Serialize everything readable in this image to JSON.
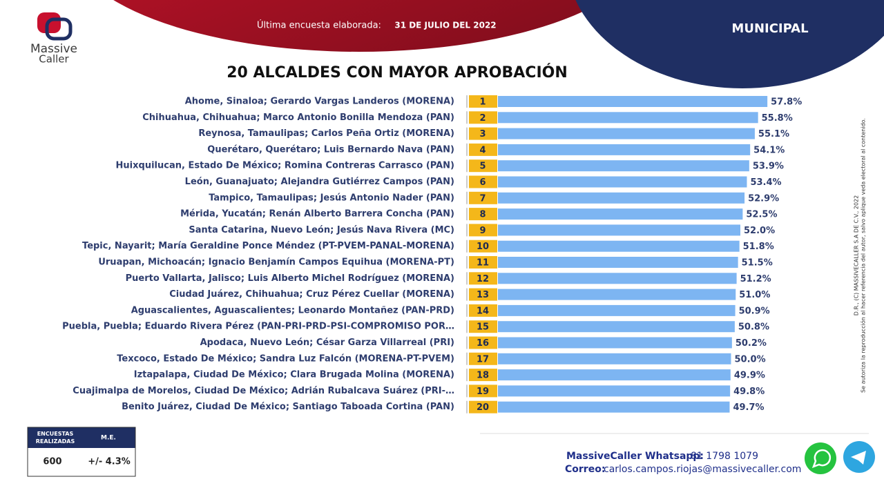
{
  "logo": {
    "line1": "Massive",
    "line2": "Caller"
  },
  "header": {
    "label": "Última encuesta elaborada:",
    "date": "31 DE JULIO DEL 2022",
    "section": "MUNICIPAL"
  },
  "chart_data": {
    "type": "bar",
    "orientation": "horizontal",
    "title": "20 ALCALDES CON MAYOR APROBACIÓN",
    "categories": [
      "Ahome, Sinaloa; Gerardo Vargas Landeros (MORENA)",
      "Chihuahua, Chihuahua; Marco Antonio Bonilla Mendoza (PAN)",
      "Reynosa, Tamaulipas; Carlos Peña Ortiz (MORENA)",
      "Querétaro, Querétaro; Luis Bernardo Nava (PAN)",
      "Huixquilucan, Estado De México; Romina Contreras Carrasco  (PAN)",
      "León, Guanajuato; Alejandra Gutiérrez Campos (PAN)",
      "Tampico, Tamaulipas; Jesús Antonio Nader  (PAN)",
      "Mérida, Yucatán; Renán Alberto Barrera Concha (PAN)",
      "Santa Catarina, Nuevo León; Jesús Nava Rivera (MC)",
      "Tepic, Nayarit; María Geraldine Ponce Méndez (PT-PVEM-PANAL-MORENA)",
      "Uruapan, Michoacán; Ignacio Benjamín Campos Equihua (MORENA-PT)",
      "Puerto Vallarta, Jalisco; Luis Alberto Michel Rodríguez (MORENA)",
      "Ciudad Juárez, Chihuahua; Cruz Pérez Cuellar (MORENA)",
      "Aguascalientes, Aguascalientes; Leonardo Montañez (PAN-PRD)",
      "Puebla, Puebla; Eduardo Rivera Pérez  (PAN-PRI-PRD-PSI-COMPROMISO POR…",
      "Apodaca, Nuevo León; César Garza Villarreal (PRI)",
      "Texcoco, Estado De México; Sandra Luz Falcón (MORENA-PT-PVEM)",
      "Iztapalapa, Ciudad De México; Clara Brugada Molina (MORENA)",
      "Cuajimalpa de Morelos, Ciudad De México; Adrián Rubalcava Suárez (PRI-…",
      "Benito Juárez, Ciudad De México; Santiago Taboada Cortina (PAN)"
    ],
    "ranks": [
      1,
      2,
      3,
      4,
      5,
      6,
      7,
      8,
      9,
      10,
      11,
      12,
      13,
      14,
      15,
      16,
      17,
      18,
      19,
      20
    ],
    "values": [
      57.8,
      55.8,
      55.1,
      54.1,
      53.9,
      53.4,
      52.9,
      52.5,
      52.0,
      51.8,
      51.5,
      51.2,
      51.0,
      50.9,
      50.8,
      50.2,
      50.0,
      49.9,
      49.8,
      49.7
    ],
    "value_labels": [
      "57.8%",
      "55.8%",
      "55.1%",
      "54.1%",
      "53.9%",
      "53.4%",
      "52.9%",
      "52.5%",
      "52.0%",
      "51.8%",
      "51.5%",
      "51.2%",
      "51.0%",
      "50.9%",
      "50.8%",
      "50.2%",
      "50.0%",
      "49.9%",
      "49.8%",
      "49.7%"
    ],
    "color": "#7db5f2",
    "rank_color": "#f4b71a"
  },
  "survey_table": {
    "headers": [
      "ENCUESTAS REALIZADAS",
      "M.E."
    ],
    "row": [
      600,
      "+/- 4.3%"
    ]
  },
  "contact": {
    "whatsapp_label": "MassiveCaller Whatsapp:",
    "whatsapp": "81 1798 1079",
    "email_label": "Correo:",
    "email": "carlos.campos.riojas@massivecaller.com"
  },
  "side_note": {
    "line1": "D.R., (C) MASSIVECALLER S.A DE C.V., 2022",
    "line2": "Se autoriza la reproducción al hacer referencia del autor, salvo aplique veda electoral al contenido."
  }
}
